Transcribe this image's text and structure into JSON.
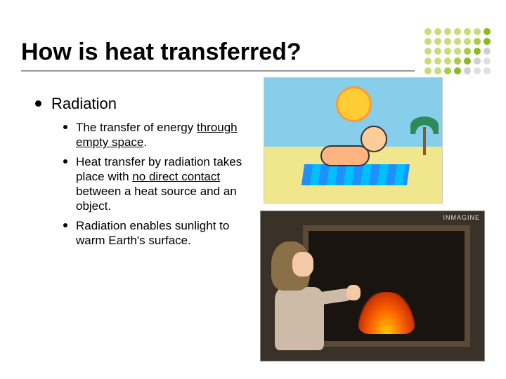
{
  "title": "How is heat transferred?",
  "topic": "Radiation",
  "points": [
    {
      "pre": "The transfer of energy ",
      "u": "through empty space",
      "post": "."
    },
    {
      "pre": "Heat transfer by radiation takes place with ",
      "u": "no direct contact",
      "post": " between a heat source and an object."
    },
    {
      "pre": "Radiation enables sunlight to warm Earth's surface.",
      "u": "",
      "post": ""
    }
  ],
  "watermark": "INMAGINE",
  "decor_dots": {
    "colors": [
      "#c8dc7c",
      "#a8cc44",
      "#88bb22",
      "#d0d0d0",
      "#e0e0e0"
    ],
    "pattern": [
      [
        0,
        0,
        0,
        0,
        0,
        0,
        2
      ],
      [
        0,
        0,
        0,
        0,
        0,
        1,
        2
      ],
      [
        0,
        0,
        0,
        0,
        1,
        2,
        3
      ],
      [
        0,
        0,
        0,
        1,
        2,
        3,
        4
      ],
      [
        0,
        0,
        1,
        2,
        3,
        4,
        4
      ]
    ]
  },
  "styles": {
    "title_fontsize": 34,
    "level1_fontsize": 22,
    "level2_fontsize": 17,
    "bg": "#ffffff",
    "text": "#000000",
    "underline_color": "#999999"
  }
}
